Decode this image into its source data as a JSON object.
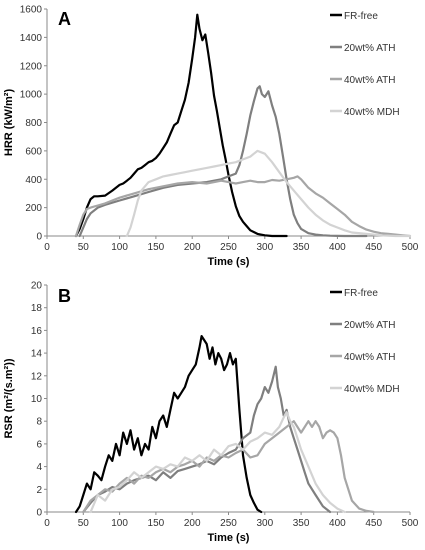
{
  "chart_data": [
    {
      "type": "line",
      "panel_label": "A",
      "xlabel": "Time (s)",
      "ylabel": "HRR (kW/m²)",
      "xlim": [
        0,
        500
      ],
      "ylim": [
        0,
        1600
      ],
      "xticks": [
        0,
        50,
        100,
        150,
        200,
        250,
        300,
        350,
        400,
        450,
        500
      ],
      "yticks": [
        0,
        200,
        400,
        600,
        800,
        1000,
        1200,
        1400,
        1600
      ],
      "grid": false,
      "legend_position": "top-right",
      "series": [
        {
          "name": "FR-free",
          "color": "#000000",
          "x": [
            40,
            45,
            50,
            55,
            60,
            65,
            70,
            80,
            90,
            100,
            105,
            110,
            115,
            120,
            125,
            130,
            135,
            140,
            145,
            150,
            155,
            160,
            165,
            170,
            175,
            180,
            185,
            190,
            195,
            200,
            204,
            207,
            210,
            214,
            218,
            222,
            226,
            230,
            234,
            238,
            242,
            246,
            250,
            255,
            260,
            265,
            270,
            275,
            280,
            290,
            300,
            310,
            320,
            330
          ],
          "y": [
            0,
            50,
            120,
            200,
            260,
            280,
            280,
            285,
            320,
            360,
            370,
            390,
            410,
            440,
            470,
            480,
            500,
            520,
            530,
            550,
            580,
            620,
            660,
            720,
            780,
            800,
            880,
            960,
            1080,
            1250,
            1400,
            1560,
            1460,
            1380,
            1420,
            1290,
            1150,
            990,
            880,
            760,
            640,
            540,
            430,
            310,
            210,
            140,
            100,
            70,
            40,
            15,
            5,
            0,
            0,
            0
          ]
        },
        {
          "name": "20wt% ATH",
          "color": "#7f7f7f",
          "x": [
            45,
            50,
            55,
            60,
            70,
            80,
            100,
            120,
            140,
            160,
            180,
            200,
            220,
            240,
            250,
            260,
            265,
            270,
            275,
            280,
            285,
            290,
            293,
            296,
            300,
            305,
            310,
            315,
            320,
            325,
            330,
            335,
            340,
            345,
            350,
            360,
            370,
            380,
            390,
            400,
            410,
            420,
            430,
            440
          ],
          "y": [
            0,
            60,
            120,
            160,
            200,
            220,
            250,
            280,
            310,
            340,
            360,
            370,
            380,
            400,
            420,
            440,
            500,
            600,
            720,
            850,
            950,
            1040,
            1055,
            1000,
            980,
            1020,
            920,
            840,
            720,
            560,
            400,
            260,
            150,
            90,
            50,
            20,
            10,
            5,
            2,
            1,
            0,
            0,
            0,
            0
          ]
        },
        {
          "name": "40wt% ATH",
          "color": "#a6a6a6",
          "x": [
            40,
            45,
            50,
            55,
            60,
            70,
            80,
            90,
            100,
            120,
            140,
            160,
            180,
            200,
            220,
            240,
            250,
            260,
            270,
            280,
            290,
            300,
            310,
            320,
            330,
            340,
            345,
            350,
            355,
            360,
            370,
            380,
            390,
            400,
            410,
            420,
            430,
            440,
            450,
            460,
            470,
            480,
            490,
            500
          ],
          "y": [
            0,
            80,
            150,
            190,
            200,
            215,
            230,
            250,
            270,
            300,
            330,
            350,
            370,
            380,
            370,
            390,
            380,
            370,
            380,
            390,
            380,
            380,
            395,
            390,
            400,
            410,
            420,
            400,
            370,
            340,
            300,
            270,
            230,
            190,
            150,
            100,
            70,
            45,
            30,
            20,
            15,
            10,
            5,
            0
          ]
        },
        {
          "name": "40wt% MDH",
          "color": "#d3d3d3",
          "x": [
            110,
            115,
            120,
            125,
            130,
            140,
            150,
            160,
            170,
            180,
            190,
            200,
            210,
            220,
            230,
            240,
            250,
            260,
            270,
            280,
            285,
            290,
            295,
            300,
            310,
            320,
            330,
            340,
            350,
            360,
            370,
            380,
            390,
            400,
            410,
            420,
            440,
            460,
            480,
            500
          ],
          "y": [
            0,
            60,
            150,
            250,
            320,
            380,
            400,
            420,
            430,
            440,
            450,
            460,
            470,
            480,
            490,
            500,
            510,
            520,
            540,
            560,
            580,
            600,
            590,
            580,
            520,
            450,
            380,
            320,
            260,
            200,
            150,
            110,
            80,
            60,
            40,
            25,
            15,
            5,
            0,
            0
          ]
        }
      ]
    },
    {
      "type": "line",
      "panel_label": "B",
      "xlabel": "Time (s)",
      "ylabel": "RSR (m²/(s.m²))",
      "xlim": [
        0,
        500
      ],
      "ylim": [
        0,
        20
      ],
      "xticks": [
        0,
        50,
        100,
        150,
        200,
        250,
        300,
        350,
        400,
        450,
        500
      ],
      "yticks": [
        0,
        2,
        4,
        6,
        8,
        10,
        12,
        14,
        16,
        18,
        20
      ],
      "grid": false,
      "legend_position": "top-right",
      "series": [
        {
          "name": "FR-free",
          "color": "#000000",
          "x": [
            40,
            45,
            50,
            55,
            60,
            65,
            70,
            75,
            80,
            85,
            90,
            95,
            100,
            105,
            110,
            115,
            120,
            125,
            130,
            135,
            140,
            145,
            150,
            155,
            160,
            165,
            170,
            175,
            180,
            185,
            190,
            195,
            200,
            205,
            210,
            213,
            216,
            220,
            224,
            228,
            232,
            236,
            240,
            244,
            248,
            252,
            256,
            260,
            265,
            270,
            275,
            280,
            285,
            290,
            295
          ],
          "y": [
            0,
            0.5,
            1.5,
            2.5,
            2.0,
            3.5,
            3.2,
            2.8,
            4.0,
            5.0,
            4.5,
            6.0,
            5.0,
            7.0,
            6.0,
            7.2,
            5.5,
            6.5,
            5.0,
            6.0,
            5.5,
            7.5,
            6.5,
            8.0,
            8.5,
            7.5,
            9.0,
            10.5,
            10.0,
            10.5,
            11.0,
            12.0,
            12.5,
            13.0,
            14.5,
            15.5,
            15.2,
            14.8,
            13.5,
            14.5,
            13.0,
            14.0,
            13.5,
            12.5,
            13.0,
            14.0,
            13.0,
            13.5,
            9.0,
            5.0,
            3.0,
            1.5,
            0.8,
            0.2,
            0
          ]
        },
        {
          "name": "20wt% ATH",
          "color": "#7f7f7f",
          "x": [
            50,
            60,
            70,
            80,
            90,
            100,
            110,
            120,
            130,
            140,
            150,
            160,
            170,
            180,
            190,
            200,
            210,
            220,
            230,
            240,
            250,
            260,
            270,
            280,
            285,
            290,
            295,
            300,
            305,
            310,
            315,
            318,
            322,
            326,
            330,
            335,
            340,
            345,
            350,
            355,
            360,
            370,
            380,
            390
          ],
          "y": [
            0,
            0.8,
            1.5,
            1.8,
            2.2,
            2.0,
            2.5,
            2.8,
            3.0,
            3.2,
            2.8,
            3.5,
            3.0,
            3.6,
            3.8,
            4.0,
            4.2,
            4.5,
            4.2,
            4.8,
            5.2,
            5.5,
            6.5,
            7.0,
            8.5,
            9.5,
            10.0,
            11.0,
            10.5,
            11.5,
            12.8,
            11.0,
            10.0,
            8.5,
            9.0,
            7.5,
            6.5,
            5.5,
            4.5,
            3.5,
            2.5,
            1.5,
            0.5,
            0
          ]
        },
        {
          "name": "40wt% ATH",
          "color": "#a6a6a6",
          "x": [
            50,
            60,
            70,
            80,
            90,
            100,
            110,
            120,
            130,
            140,
            150,
            160,
            170,
            180,
            190,
            200,
            210,
            220,
            230,
            240,
            250,
            260,
            270,
            280,
            290,
            300,
            310,
            320,
            330,
            340,
            350,
            360,
            365,
            370,
            375,
            380,
            385,
            390,
            395,
            400,
            405,
            410,
            420,
            430,
            440,
            450
          ],
          "y": [
            0,
            1.0,
            1.5,
            2.0,
            1.8,
            2.5,
            3.0,
            2.5,
            3.2,
            3.0,
            3.5,
            3.8,
            3.5,
            4.0,
            4.2,
            4.5,
            4.0,
            4.8,
            4.5,
            5.0,
            4.8,
            5.2,
            5.5,
            4.8,
            5.0,
            6.0,
            6.5,
            7.0,
            7.5,
            8.0,
            7.0,
            8.0,
            7.5,
            8.0,
            7.5,
            6.5,
            7.0,
            7.2,
            7.0,
            6.5,
            5.0,
            3.0,
            1.0,
            0.3,
            0.1,
            0
          ]
        },
        {
          "name": "40wt% MDH",
          "color": "#d3d3d3",
          "x": [
            60,
            70,
            80,
            90,
            100,
            110,
            120,
            130,
            140,
            150,
            160,
            170,
            180,
            190,
            200,
            210,
            220,
            230,
            240,
            250,
            260,
            270,
            280,
            290,
            300,
            310,
            320,
            325,
            330,
            335,
            340,
            345,
            350,
            360,
            370,
            380,
            390,
            400,
            410
          ],
          "y": [
            0,
            1.5,
            1.0,
            2.0,
            2.2,
            2.8,
            3.5,
            3.0,
            3.5,
            4.0,
            3.8,
            4.2,
            4.0,
            4.8,
            4.5,
            5.0,
            4.5,
            5.5,
            5.0,
            5.8,
            6.0,
            5.5,
            6.2,
            6.5,
            7.0,
            6.8,
            7.5,
            8.2,
            8.8,
            8.0,
            7.5,
            6.5,
            5.5,
            4.0,
            2.5,
            1.5,
            0.8,
            0.3,
            0
          ]
        }
      ]
    }
  ]
}
